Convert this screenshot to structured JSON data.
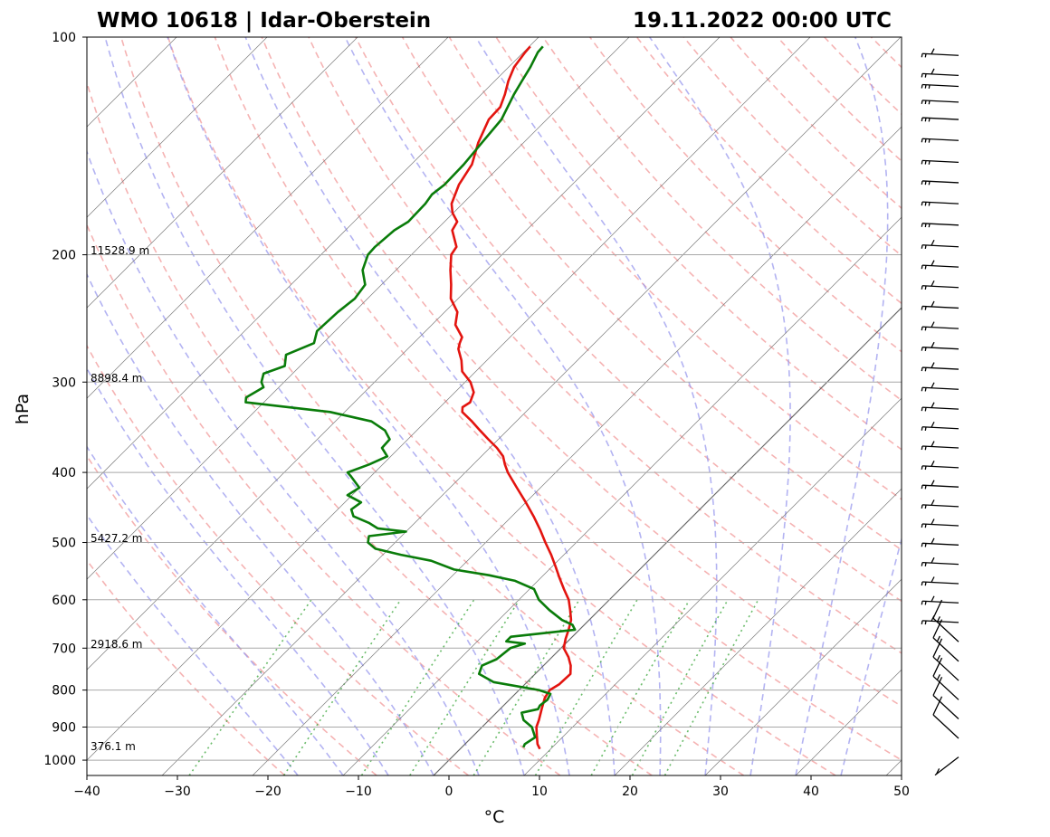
{
  "title_left": "WMO 10618 | Idar-Oberstein",
  "title_right": "19.11.2022 00:00 UTC",
  "chart_data": {
    "type": "skew-t log-p",
    "xlabel": "°C",
    "ylabel": "hPa",
    "xlim": [
      -40,
      50
    ],
    "ylim": [
      1050,
      100
    ],
    "y_scale": "log",
    "grid": true,
    "x_ticks": [
      {
        "value": -40,
        "label": "−40"
      },
      {
        "value": -30,
        "label": "−30"
      },
      {
        "value": -20,
        "label": "−20"
      },
      {
        "value": -10,
        "label": "−10"
      },
      {
        "value": 0,
        "label": "0"
      },
      {
        "value": 10,
        "label": "10"
      },
      {
        "value": 20,
        "label": "20"
      },
      {
        "value": 30,
        "label": "30"
      },
      {
        "value": 40,
        "label": "40"
      },
      {
        "value": 50,
        "label": "50"
      }
    ],
    "y_ticks": [
      {
        "value": 100,
        "label": "100"
      },
      {
        "value": 200,
        "label": "200"
      },
      {
        "value": 300,
        "label": "300"
      },
      {
        "value": 400,
        "label": "400"
      },
      {
        "value": 500,
        "label": "500"
      },
      {
        "value": 600,
        "label": "600"
      },
      {
        "value": 700,
        "label": "700"
      },
      {
        "value": 800,
        "label": "800"
      },
      {
        "value": 900,
        "label": "900"
      },
      {
        "value": 1000,
        "label": "1000"
      }
    ],
    "height_labels": [
      {
        "p": 200,
        "label": "11528.9 m"
      },
      {
        "p": 300,
        "label": "8898.4 m"
      },
      {
        "p": 500,
        "label": "5427.2 m"
      },
      {
        "p": 700,
        "label": "2918.6 m"
      },
      {
        "p": 970,
        "label": "376.1 m"
      }
    ],
    "series": [
      {
        "kind": "temperature",
        "color": "#e3140f",
        "points": [
          [
            965,
            8.8
          ],
          [
            950,
            8.0
          ],
          [
            925,
            7.0
          ],
          [
            900,
            6.0
          ],
          [
            880,
            5.5
          ],
          [
            850,
            4.6
          ],
          [
            820,
            3.7
          ],
          [
            800,
            3.4
          ],
          [
            785,
            3.8
          ],
          [
            760,
            3.9
          ],
          [
            740,
            3.0
          ],
          [
            720,
            1.8
          ],
          [
            700,
            0.3
          ],
          [
            680,
            -0.5
          ],
          [
            660,
            -1.2
          ],
          [
            640,
            -2.0
          ],
          [
            620,
            -3.2
          ],
          [
            600,
            -4.5
          ],
          [
            580,
            -6.2
          ],
          [
            560,
            -7.9
          ],
          [
            540,
            -9.6
          ],
          [
            520,
            -11.4
          ],
          [
            500,
            -13.4
          ],
          [
            480,
            -15.4
          ],
          [
            460,
            -17.6
          ],
          [
            440,
            -20.0
          ],
          [
            420,
            -22.6
          ],
          [
            400,
            -25.3
          ],
          [
            390,
            -26.5
          ],
          [
            380,
            -27.6
          ],
          [
            370,
            -29.2
          ],
          [
            360,
            -31.1
          ],
          [
            350,
            -33.0
          ],
          [
            340,
            -34.9
          ],
          [
            330,
            -37.0
          ],
          [
            325,
            -37.5
          ],
          [
            320,
            -37.2
          ],
          [
            310,
            -37.9
          ],
          [
            300,
            -39.4
          ],
          [
            290,
            -41.5
          ],
          [
            280,
            -42.8
          ],
          [
            270,
            -44.4
          ],
          [
            265,
            -44.9
          ],
          [
            260,
            -45.3
          ],
          [
            250,
            -47.4
          ],
          [
            240,
            -48.6
          ],
          [
            230,
            -50.8
          ],
          [
            220,
            -52.3
          ],
          [
            210,
            -54.0
          ],
          [
            200,
            -55.6
          ],
          [
            195,
            -55.9
          ],
          [
            185,
            -58.2
          ],
          [
            180,
            -58.6
          ],
          [
            175,
            -60.1
          ],
          [
            170,
            -61.2
          ],
          [
            160,
            -62.5
          ],
          [
            150,
            -63.3
          ],
          [
            140,
            -65.0
          ],
          [
            130,
            -66.4
          ],
          [
            125,
            -66.5
          ],
          [
            120,
            -67.4
          ],
          [
            115,
            -68.5
          ],
          [
            110,
            -69.4
          ],
          [
            105,
            -69.8
          ],
          [
            103,
            -69.9
          ]
        ]
      },
      {
        "kind": "dewpoint",
        "color": "#0a7c0a",
        "points": [
          [
            960,
            6.8
          ],
          [
            950,
            6.6
          ],
          [
            930,
            7.0
          ],
          [
            900,
            5.5
          ],
          [
            880,
            3.8
          ],
          [
            860,
            2.8
          ],
          [
            850,
            4.2
          ],
          [
            840,
            4.0
          ],
          [
            825,
            4.2
          ],
          [
            810,
            3.9
          ],
          [
            800,
            2.2
          ],
          [
            780,
            -3.7
          ],
          [
            760,
            -6.2
          ],
          [
            740,
            -6.8
          ],
          [
            725,
            -5.9
          ],
          [
            700,
            -5.6
          ],
          [
            690,
            -4.5
          ],
          [
            685,
            -6.8
          ],
          [
            675,
            -6.8
          ],
          [
            660,
            -0.5
          ],
          [
            650,
            -1.3
          ],
          [
            640,
            -3.0
          ],
          [
            620,
            -5.5
          ],
          [
            600,
            -7.8
          ],
          [
            580,
            -9.5
          ],
          [
            565,
            -12.5
          ],
          [
            555,
            -16.0
          ],
          [
            545,
            -20.5
          ],
          [
            530,
            -24.0
          ],
          [
            520,
            -28.0
          ],
          [
            510,
            -31.5
          ],
          [
            500,
            -33.0
          ],
          [
            490,
            -33.6
          ],
          [
            483,
            -30.0
          ],
          [
            478,
            -33.5
          ],
          [
            470,
            -35.0
          ],
          [
            460,
            -37.5
          ],
          [
            450,
            -38.5
          ],
          [
            440,
            -38.2
          ],
          [
            430,
            -40.5
          ],
          [
            420,
            -40.0
          ],
          [
            405,
            -42.2
          ],
          [
            400,
            -43.0
          ],
          [
            390,
            -41.5
          ],
          [
            380,
            -40.4
          ],
          [
            370,
            -41.9
          ],
          [
            360,
            -42.0
          ],
          [
            350,
            -43.5
          ],
          [
            340,
            -46.0
          ],
          [
            330,
            -51.6
          ],
          [
            320,
            -62.0
          ],
          [
            315,
            -62.5
          ],
          [
            305,
            -61.7
          ],
          [
            300,
            -62.5
          ],
          [
            292,
            -63.2
          ],
          [
            285,
            -61.7
          ],
          [
            275,
            -62.8
          ],
          [
            265,
            -61.0
          ],
          [
            255,
            -62.0
          ],
          [
            240,
            -61.8
          ],
          [
            230,
            -61.4
          ],
          [
            220,
            -61.8
          ],
          [
            210,
            -63.7
          ],
          [
            200,
            -64.8
          ],
          [
            195,
            -64.9
          ],
          [
            185,
            -64.6
          ],
          [
            180,
            -64.0
          ],
          [
            170,
            -64.1
          ],
          [
            165,
            -64.4
          ],
          [
            160,
            -64.1
          ],
          [
            150,
            -64.2
          ],
          [
            140,
            -64.6
          ],
          [
            130,
            -65.0
          ],
          [
            120,
            -66.4
          ],
          [
            115,
            -67.0
          ],
          [
            110,
            -67.6
          ],
          [
            105,
            -68.4
          ],
          [
            103,
            -68.5
          ]
        ]
      }
    ],
    "wind_barbs": [
      {
        "p": 106,
        "speed_kt": 25
      },
      {
        "p": 113,
        "speed_kt": 25
      },
      {
        "p": 117,
        "speed_kt": 30
      },
      {
        "p": 123,
        "speed_kt": 30
      },
      {
        "p": 130,
        "speed_kt": 30
      },
      {
        "p": 139,
        "speed_kt": 30
      },
      {
        "p": 149,
        "speed_kt": 30
      },
      {
        "p": 159,
        "speed_kt": 30
      },
      {
        "p": 170,
        "speed_kt": 30
      },
      {
        "p": 182,
        "speed_kt": 30
      },
      {
        "p": 195,
        "speed_kt": 25
      },
      {
        "p": 208,
        "speed_kt": 25
      },
      {
        "p": 222,
        "speed_kt": 25
      },
      {
        "p": 237,
        "speed_kt": 25
      },
      {
        "p": 253,
        "speed_kt": 25
      },
      {
        "p": 270,
        "speed_kt": 25
      },
      {
        "p": 288,
        "speed_kt": 25
      },
      {
        "p": 307,
        "speed_kt": 25
      },
      {
        "p": 327,
        "speed_kt": 25
      },
      {
        "p": 348,
        "speed_kt": 25
      },
      {
        "p": 370,
        "speed_kt": 25
      },
      {
        "p": 394,
        "speed_kt": 25
      },
      {
        "p": 419,
        "speed_kt": 25
      },
      {
        "p": 446,
        "speed_kt": 25
      },
      {
        "p": 474,
        "speed_kt": 25
      },
      {
        "p": 504,
        "speed_kt": 25
      },
      {
        "p": 536,
        "speed_kt": 25
      },
      {
        "p": 570,
        "speed_kt": 25
      },
      {
        "p": 606,
        "speed_kt": 25
      },
      {
        "p": 645,
        "speed_kt": 25
      },
      {
        "p": 686,
        "speed_kt": 15
      },
      {
        "p": 730,
        "speed_kt": 15
      },
      {
        "p": 776,
        "speed_kt": 15
      },
      {
        "p": 825,
        "speed_kt": 15
      },
      {
        "p": 877,
        "speed_kt": 10
      },
      {
        "p": 933,
        "speed_kt": 10
      },
      {
        "p": 990,
        "speed_kt": 5
      }
    ]
  }
}
